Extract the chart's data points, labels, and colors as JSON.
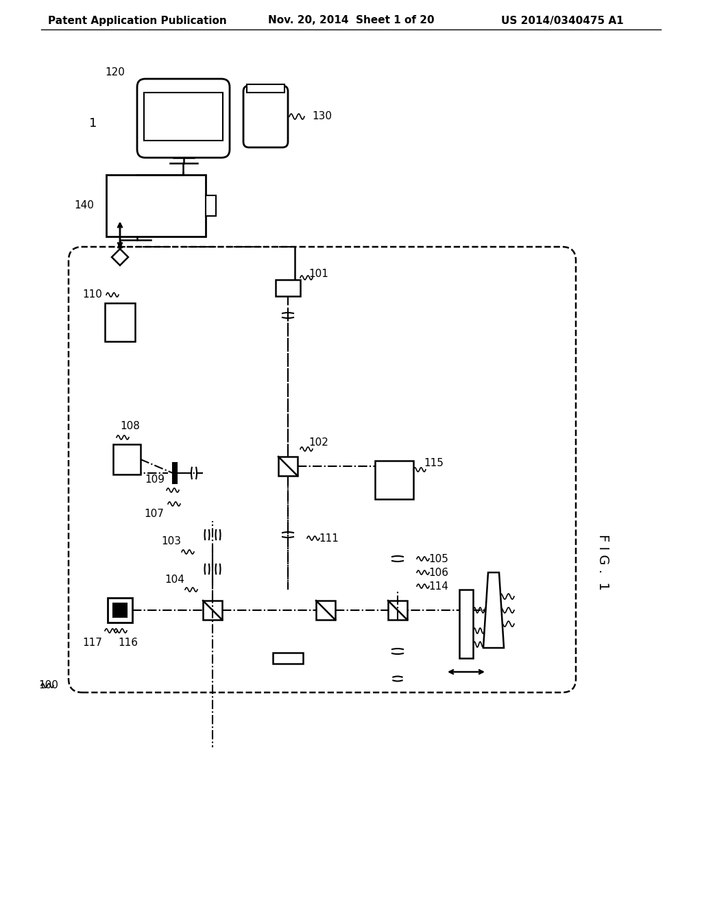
{
  "bg_color": "#ffffff",
  "line_color": "#000000",
  "header_left": "Patent Application Publication",
  "header_center": "Nov. 20, 2014  Sheet 1 of 20",
  "header_right": "US 2014/0340475 A1",
  "fig_label": "F I G . 1",
  "fig_width": 1024,
  "fig_height": 1320
}
